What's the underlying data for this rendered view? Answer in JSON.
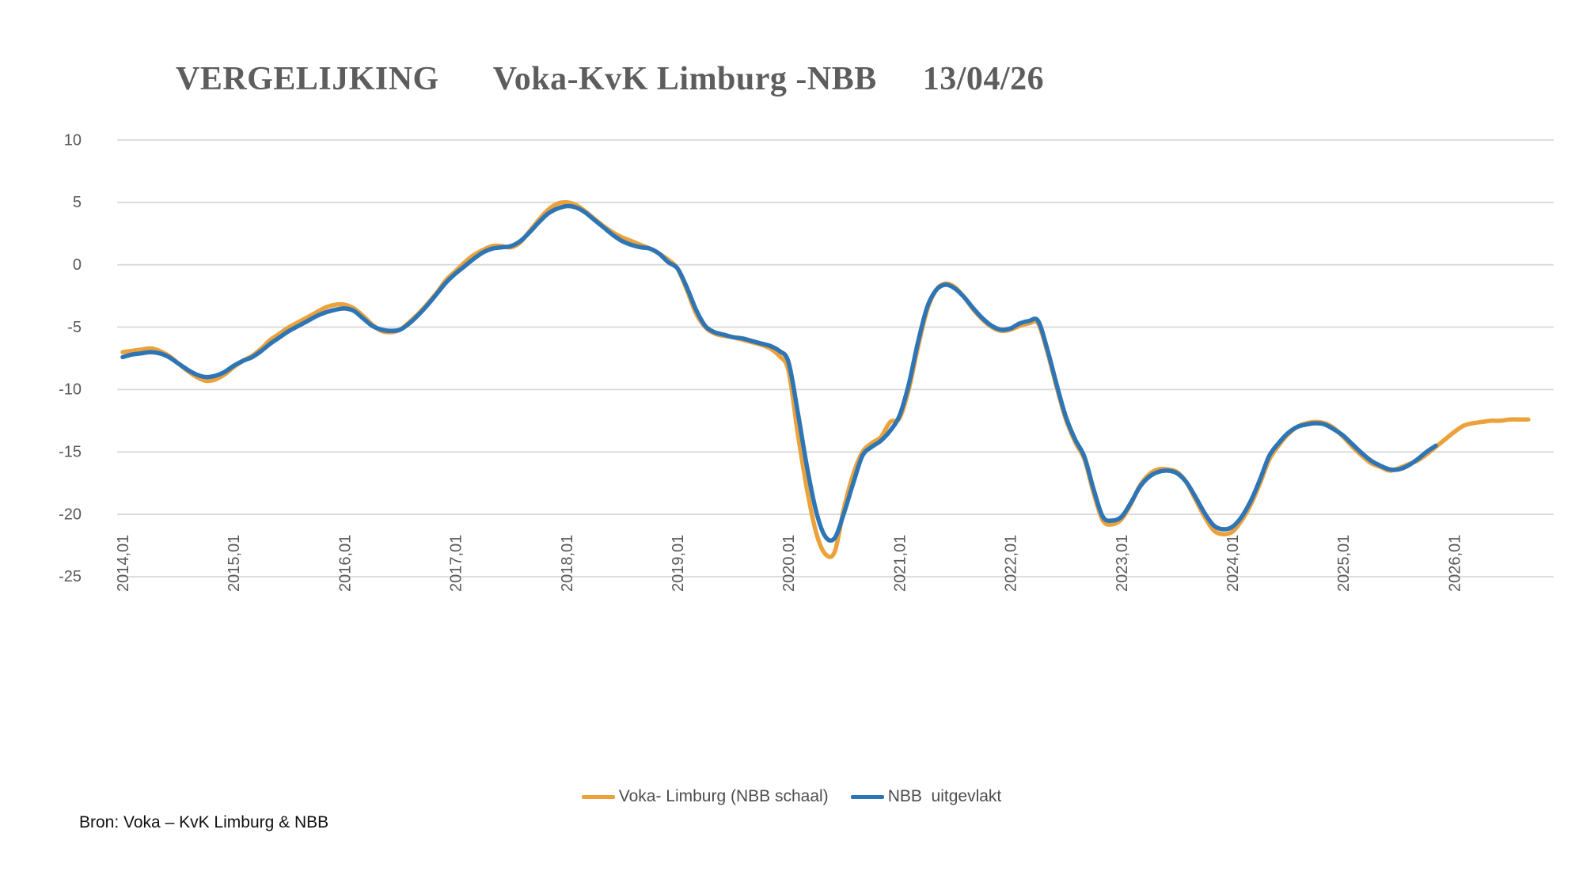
{
  "title": {
    "part1": "VERGELIJKING",
    "part2": "Voka-KvK Limburg -NBB",
    "part3": "13/04/26"
  },
  "source_note": "Bron: Voka – KvK Limburg & NBB",
  "legend": [
    {
      "label": "Voka- Limburg (NBB schaal)",
      "color": "#EBA23B"
    },
    {
      "label": "NBB  uitgevlakt",
      "color": "#2E75B6"
    }
  ],
  "colors": {
    "background": "#FFFFFF",
    "grid": "#D9D9D9",
    "axis_text": "#595959",
    "title_text": "#5D5D5D",
    "legend_text": "#4D4D4D",
    "voka_orange": "#EBA23B",
    "nbb_blue": "#2E75B6"
  },
  "chart_data": {
    "type": "line",
    "title": "VERGELIJKING Voka-KvK Limburg -NBB 13/04/26",
    "xlabel": "",
    "ylabel": "",
    "x_start": "2014-01",
    "x_interval": "monthly",
    "x_tick_labels": [
      "2014,01",
      "2015,01",
      "2016,01",
      "2017,01",
      "2018,01",
      "2019,01",
      "2020,01",
      "2021,01",
      "2022,01",
      "2023,01",
      "2024,01",
      "2025,01",
      "2026,01"
    ],
    "y_ticks": [
      10,
      5,
      0,
      -5,
      -10,
      -15,
      -20,
      -25
    ],
    "ylim": [
      -25,
      10
    ],
    "grid": "horizontal-only",
    "legend_position": "bottom",
    "line_style": "smoothed",
    "series": [
      {
        "name": "Voka- Limburg (NBB schaal)",
        "color": "#EBA23B",
        "end": "2026-09",
        "values": [
          -7.0,
          -6.9,
          -6.8,
          -6.7,
          -6.9,
          -7.3,
          -7.9,
          -8.5,
          -9.0,
          -9.3,
          -9.2,
          -8.8,
          -8.2,
          -7.7,
          -7.3,
          -6.7,
          -6.0,
          -5.5,
          -5.0,
          -4.6,
          -4.2,
          -3.8,
          -3.4,
          -3.2,
          -3.2,
          -3.5,
          -4.1,
          -4.8,
          -5.3,
          -5.4,
          -5.2,
          -4.6,
          -3.9,
          -3.1,
          -2.2,
          -1.2,
          -0.5,
          0.2,
          0.8,
          1.2,
          1.5,
          1.5,
          1.4,
          1.8,
          2.7,
          3.6,
          4.4,
          4.9,
          5.0,
          4.8,
          4.3,
          3.7,
          3.1,
          2.6,
          2.2,
          1.9,
          1.6,
          1.3,
          0.9,
          0.4,
          -0.3,
          -2.0,
          -3.9,
          -5.0,
          -5.5,
          -5.7,
          -5.8,
          -6.0,
          -6.2,
          -6.4,
          -6.7,
          -7.3,
          -8.5,
          -13.5,
          -18.0,
          -21.5,
          -23.2,
          -23.0,
          -19.5,
          -16.8,
          -15.0,
          -14.3,
          -13.8,
          -12.6,
          -12.3,
          -10.0,
          -6.6,
          -3.6,
          -2.0,
          -1.5,
          -1.8,
          -2.6,
          -3.6,
          -4.4,
          -5.0,
          -5.3,
          -5.2,
          -4.9,
          -4.7,
          -4.7,
          -7.0,
          -9.8,
          -12.4,
          -14.2,
          -15.6,
          -18.3,
          -20.5,
          -20.8,
          -20.4,
          -19.2,
          -17.7,
          -16.8,
          -16.4,
          -16.4,
          -16.6,
          -17.4,
          -18.8,
          -20.2,
          -21.3,
          -21.6,
          -21.4,
          -20.5,
          -19.2,
          -17.5,
          -15.6,
          -14.5,
          -13.6,
          -13.0,
          -12.7,
          -12.6,
          -12.7,
          -13.1,
          -13.8,
          -14.6,
          -15.3,
          -15.9,
          -16.2,
          -16.5,
          -16.3,
          -16.0,
          -15.7,
          -15.2,
          -14.6,
          -14.0,
          -13.4,
          -12.9,
          -12.7,
          -12.6,
          -12.5,
          -12.5,
          -12.4,
          -12.4,
          -12.4
        ]
      },
      {
        "name": "NBB  uitgevlakt",
        "color": "#2E75B6",
        "end": "2025-11",
        "values": [
          -7.4,
          -7.2,
          -7.1,
          -7.0,
          -7.1,
          -7.4,
          -7.9,
          -8.4,
          -8.8,
          -9.0,
          -8.9,
          -8.6,
          -8.1,
          -7.7,
          -7.4,
          -6.9,
          -6.3,
          -5.8,
          -5.3,
          -4.9,
          -4.5,
          -4.1,
          -3.8,
          -3.6,
          -3.5,
          -3.7,
          -4.3,
          -4.9,
          -5.2,
          -5.3,
          -5.2,
          -4.7,
          -4.0,
          -3.2,
          -2.3,
          -1.4,
          -0.7,
          -0.1,
          0.5,
          1.0,
          1.3,
          1.4,
          1.5,
          1.9,
          2.6,
          3.4,
          4.1,
          4.5,
          4.7,
          4.6,
          4.2,
          3.6,
          3.0,
          2.4,
          1.9,
          1.6,
          1.4,
          1.3,
          0.9,
          0.2,
          -0.3,
          -1.8,
          -3.6,
          -4.9,
          -5.4,
          -5.6,
          -5.8,
          -5.9,
          -6.1,
          -6.3,
          -6.5,
          -6.9,
          -7.8,
          -11.8,
          -16.2,
          -19.8,
          -21.8,
          -21.9,
          -19.9,
          -17.5,
          -15.3,
          -14.6,
          -14.1,
          -13.3,
          -12.1,
          -9.6,
          -6.2,
          -3.4,
          -2.0,
          -1.6,
          -1.9,
          -2.6,
          -3.5,
          -4.3,
          -4.9,
          -5.2,
          -5.1,
          -4.7,
          -4.5,
          -4.5,
          -6.8,
          -9.6,
          -12.2,
          -14.0,
          -15.4,
          -18.0,
          -20.2,
          -20.5,
          -20.2,
          -19.1,
          -17.8,
          -17.0,
          -16.6,
          -16.5,
          -16.7,
          -17.4,
          -18.6,
          -19.9,
          -20.9,
          -21.2,
          -21.0,
          -20.2,
          -18.9,
          -17.2,
          -15.3,
          -14.3,
          -13.5,
          -13.0,
          -12.8,
          -12.7,
          -12.8,
          -13.2,
          -13.7,
          -14.4,
          -15.1,
          -15.7,
          -16.1,
          -16.4,
          -16.4,
          -16.1,
          -15.6,
          -15.0,
          -14.5
        ]
      }
    ]
  }
}
